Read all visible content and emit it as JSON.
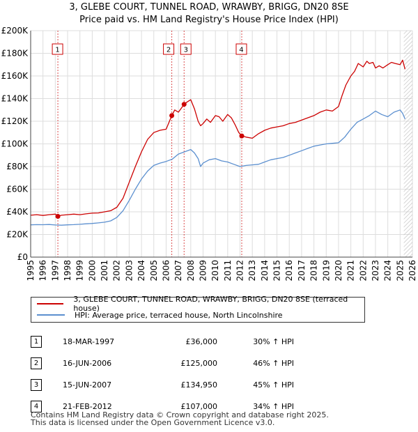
{
  "chart_data": {
    "type": "line",
    "title_line1": "3, GLEBE COURT, TUNNEL ROAD, WRAWBY, BRIGG, DN20 8SE",
    "title_line2": "Price paid vs. HM Land Registry's House Price Index (HPI)",
    "xlim": [
      1995,
      2026
    ],
    "ylim": [
      0,
      200000
    ],
    "x_ticks": [
      1995,
      1996,
      1997,
      1998,
      1999,
      2000,
      2001,
      2002,
      2003,
      2004,
      2005,
      2006,
      2007,
      2008,
      2009,
      2010,
      2011,
      2012,
      2013,
      2014,
      2015,
      2016,
      2017,
      2018,
      2019,
      2020,
      2021,
      2022,
      2023,
      2024,
      2025,
      2026
    ],
    "y_ticks": [
      {
        "value": 0,
        "label": "£0"
      },
      {
        "value": 20000,
        "label": "£20K"
      },
      {
        "value": 40000,
        "label": "£40K"
      },
      {
        "value": 60000,
        "label": "£60K"
      },
      {
        "value": 80000,
        "label": "£80K"
      },
      {
        "value": 100000,
        "label": "£100K"
      },
      {
        "value": 120000,
        "label": "£120K"
      },
      {
        "value": 140000,
        "label": "£140K"
      },
      {
        "value": 160000,
        "label": "£160K"
      },
      {
        "value": 180000,
        "label": "£180K"
      },
      {
        "value": 200000,
        "label": "£200K"
      }
    ],
    "series": [
      {
        "name": "3, GLEBE COURT, TUNNEL ROAD, WRAWBY, BRIGG, DN20 8SE (terraced house)",
        "color": "#cc0000",
        "x": [
          1995,
          1995.5,
          1996,
          1996.5,
          1997,
          1997.21,
          1997.5,
          1998,
          1998.5,
          1999,
          1999.5,
          2000,
          2000.5,
          2001,
          2001.5,
          2002,
          2002.5,
          2003,
          2003.5,
          2004,
          2004.5,
          2005,
          2005.5,
          2006,
          2006.46,
          2006.7,
          2007,
          2007.46,
          2007.7,
          2008,
          2008.3,
          2008.6,
          2008.8,
          2009,
          2009.3,
          2009.6,
          2010,
          2010.3,
          2010.6,
          2011,
          2011.3,
          2011.6,
          2011.9,
          2012.14,
          2012.5,
          2013,
          2013.5,
          2014,
          2014.5,
          2015,
          2015.5,
          2016,
          2016.5,
          2017,
          2017.5,
          2018,
          2018.5,
          2019,
          2019.5,
          2020,
          2020.3,
          2020.6,
          2021,
          2021.3,
          2021.6,
          2022,
          2022.3,
          2022.5,
          2022.8,
          2023,
          2023.3,
          2023.6,
          2024,
          2024.3,
          2024.6,
          2025,
          2025.2,
          2025.4
        ],
        "values": [
          37000,
          37500,
          36800,
          37500,
          38000,
          36000,
          37000,
          37500,
          38000,
          37500,
          38200,
          38800,
          39000,
          40000,
          41000,
          44000,
          52000,
          66000,
          80000,
          93000,
          104000,
          110000,
          112000,
          113000,
          125000,
          130000,
          128000,
          134950,
          137000,
          139000,
          131000,
          120000,
          116000,
          118000,
          122000,
          119000,
          125000,
          124000,
          120000,
          126000,
          123000,
          117000,
          110000,
          107000,
          106000,
          105000,
          109000,
          112000,
          114000,
          115000,
          116000,
          118000,
          119000,
          121000,
          123000,
          125000,
          128000,
          130000,
          129000,
          133000,
          143000,
          152000,
          160000,
          164000,
          171000,
          168000,
          173000,
          171000,
          172000,
          167000,
          169000,
          167000,
          170000,
          172000,
          171000,
          170000,
          174000,
          166000
        ]
      },
      {
        "name": "HPI: Average price, terraced house, North Lincolnshire",
        "color": "#5b8fcf",
        "x": [
          1995,
          1995.5,
          1996,
          1996.5,
          1997,
          1997.5,
          1998,
          1998.5,
          1999,
          1999.5,
          2000,
          2000.5,
          2001,
          2001.5,
          2002,
          2002.5,
          2003,
          2003.5,
          2004,
          2004.5,
          2005,
          2005.5,
          2006,
          2006.5,
          2007,
          2007.5,
          2008,
          2008.3,
          2008.6,
          2008.8,
          2009,
          2009.5,
          2010,
          2010.5,
          2011,
          2011.5,
          2012,
          2012.5,
          2013,
          2013.5,
          2014,
          2014.5,
          2015,
          2015.5,
          2016,
          2016.5,
          2017,
          2017.5,
          2018,
          2018.5,
          2019,
          2019.5,
          2020,
          2020.5,
          2021,
          2021.5,
          2022,
          2022.5,
          2023,
          2023.5,
          2024,
          2024.5,
          2025,
          2025.2,
          2025.4
        ],
        "values": [
          28500,
          28700,
          28600,
          28800,
          28400,
          28200,
          28500,
          28700,
          29000,
          29400,
          29700,
          30200,
          30800,
          32000,
          35000,
          41000,
          50000,
          60000,
          69000,
          76000,
          81000,
          83000,
          84500,
          86500,
          91000,
          93000,
          95000,
          92000,
          87000,
          80000,
          83000,
          86000,
          87000,
          85000,
          84000,
          82000,
          80000,
          81000,
          81500,
          82000,
          84000,
          86000,
          87000,
          88000,
          90000,
          92000,
          94000,
          96000,
          98000,
          99000,
          100000,
          100500,
          101000,
          106000,
          113000,
          119000,
          122000,
          125000,
          129000,
          126000,
          124000,
          128000,
          130000,
          127000,
          122000
        ]
      }
    ],
    "sale_markers": [
      {
        "num": "1",
        "x": 1997.21,
        "value": 36000
      },
      {
        "num": "2",
        "x": 2006.46,
        "value": 125000
      },
      {
        "num": "3",
        "x": 2007.46,
        "value": 134950
      },
      {
        "num": "4",
        "x": 2012.14,
        "value": 107000
      }
    ],
    "hatch_from_x": 2025.3
  },
  "legend": {
    "property": "3, GLEBE COURT, TUNNEL ROAD, WRAWBY, BRIGG, DN20 8SE (terraced house)",
    "hpi": "HPI: Average price, terraced house, North Lincolnshire"
  },
  "sales_table": [
    {
      "num": "1",
      "date": "18-MAR-1997",
      "price": "£36,000",
      "hpi": "30% ↑ HPI"
    },
    {
      "num": "2",
      "date": "16-JUN-2006",
      "price": "£125,000",
      "hpi": "46% ↑ HPI"
    },
    {
      "num": "3",
      "date": "15-JUN-2007",
      "price": "£134,950",
      "hpi": "45% ↑ HPI"
    },
    {
      "num": "4",
      "date": "21-FEB-2012",
      "price": "£107,000",
      "hpi": "34% ↑ HPI"
    }
  ],
  "footer": {
    "line1": "Contains HM Land Registry data © Crown copyright and database right 2025.",
    "line2": "This data is licensed under the Open Government Licence v3.0."
  }
}
